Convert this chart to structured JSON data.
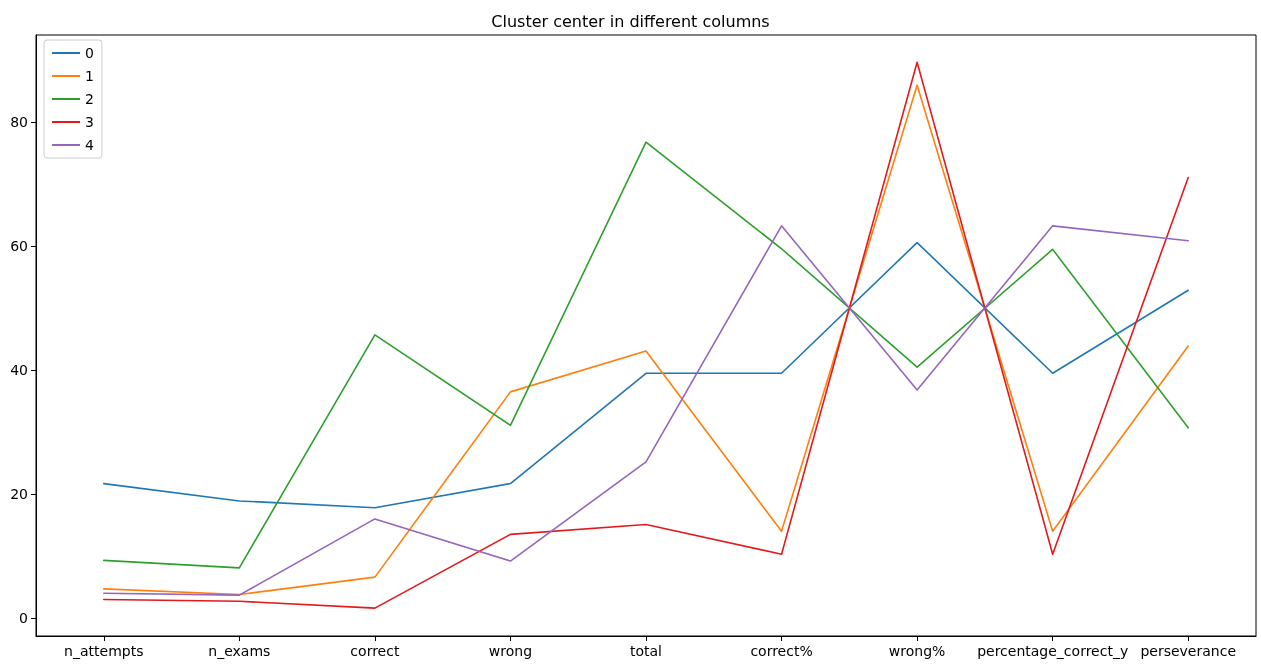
{
  "chart_data": {
    "type": "line",
    "title": "Cluster center in different columns",
    "categories": [
      "n_attempts",
      "n_exams",
      "correct",
      "wrong",
      "total",
      "correct%",
      "wrong%",
      "percentage_correct_y",
      "perseverance"
    ],
    "series": [
      {
        "name": "0",
        "color": "#1f77b4",
        "values": [
          21.7,
          18.9,
          17.8,
          21.7,
          39.5,
          39.5,
          60.6,
          39.5,
          52.9
        ]
      },
      {
        "name": "1",
        "color": "#ff7f0e",
        "values": [
          4.7,
          3.8,
          6.6,
          36.5,
          43.1,
          14.0,
          86.0,
          14.0,
          43.9
        ]
      },
      {
        "name": "2",
        "color": "#2ca02c",
        "values": [
          9.3,
          8.1,
          45.7,
          31.1,
          76.8,
          59.6,
          40.5,
          59.5,
          30.7
        ]
      },
      {
        "name": "3",
        "color": "#e31a1c",
        "values": [
          3.0,
          2.7,
          1.6,
          13.5,
          15.1,
          10.3,
          89.7,
          10.3,
          71.1
        ]
      },
      {
        "name": "4",
        "color": "#9467bd",
        "values": [
          4.0,
          3.7,
          16.0,
          9.2,
          25.2,
          63.3,
          36.8,
          63.3,
          60.9
        ]
      }
    ],
    "ylim": [
      -2.9,
      94.1
    ],
    "yticks": [
      0,
      20,
      40,
      60,
      80
    ],
    "grid": false,
    "legend": "top left",
    "marker": "none"
  }
}
